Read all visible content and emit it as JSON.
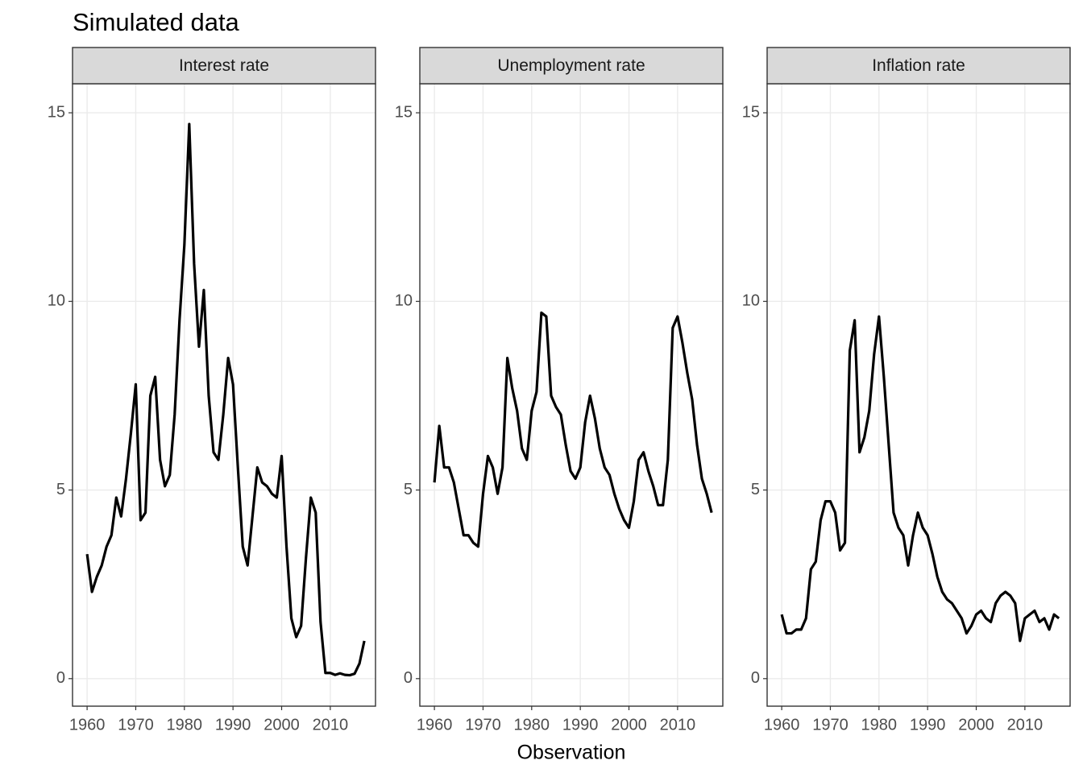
{
  "chart_data": {
    "type": "line",
    "title": "Simulated data",
    "xlabel": "Observation",
    "x": [
      1960,
      1961,
      1962,
      1963,
      1964,
      1965,
      1966,
      1967,
      1968,
      1969,
      1970,
      1971,
      1972,
      1973,
      1974,
      1975,
      1976,
      1977,
      1978,
      1979,
      1980,
      1981,
      1982,
      1983,
      1984,
      1985,
      1986,
      1987,
      1988,
      1989,
      1990,
      1991,
      1992,
      1993,
      1994,
      1995,
      1996,
      1997,
      1998,
      1999,
      2000,
      2001,
      2002,
      2003,
      2004,
      2005,
      2006,
      2007,
      2008,
      2009,
      2010,
      2011,
      2012,
      2013,
      2014,
      2015,
      2016,
      2017
    ],
    "series": [
      {
        "name": "Interest rate",
        "color": "#000000",
        "values": [
          3.3,
          2.3,
          2.7,
          3.0,
          3.5,
          3.8,
          4.8,
          4.3,
          5.3,
          6.5,
          7.8,
          4.2,
          4.4,
          7.5,
          8.0,
          5.8,
          5.1,
          5.4,
          7.0,
          9.5,
          11.5,
          14.7,
          11.0,
          8.8,
          10.3,
          7.5,
          6.0,
          5.8,
          7.0,
          8.5,
          7.8,
          5.6,
          3.5,
          3.0,
          4.3,
          5.6,
          5.2,
          5.1,
          4.9,
          4.8,
          5.9,
          3.5,
          1.6,
          1.1,
          1.4,
          3.2,
          4.8,
          4.4,
          1.5,
          0.15,
          0.15,
          0.1,
          0.14,
          0.1,
          0.09,
          0.13,
          0.4,
          1.0
        ]
      },
      {
        "name": "Unemployment rate",
        "color": "#000000",
        "values": [
          5.2,
          6.7,
          5.6,
          5.6,
          5.2,
          4.5,
          3.8,
          3.8,
          3.6,
          3.5,
          4.9,
          5.9,
          5.6,
          4.9,
          5.6,
          8.5,
          7.7,
          7.1,
          6.1,
          5.8,
          7.1,
          7.6,
          9.7,
          9.6,
          7.5,
          7.2,
          7.0,
          6.2,
          5.5,
          5.3,
          5.6,
          6.8,
          7.5,
          6.9,
          6.1,
          5.6,
          5.4,
          4.9,
          4.5,
          4.2,
          4.0,
          4.7,
          5.8,
          6.0,
          5.5,
          5.1,
          4.6,
          4.6,
          5.8,
          9.3,
          9.6,
          8.9,
          8.1,
          7.4,
          6.2,
          5.3,
          4.9,
          4.4
        ]
      },
      {
        "name": "Inflation rate",
        "color": "#000000",
        "values": [
          1.7,
          1.2,
          1.2,
          1.3,
          1.3,
          1.6,
          2.9,
          3.1,
          4.2,
          4.7,
          4.7,
          4.4,
          3.4,
          3.6,
          8.7,
          9.5,
          6.0,
          6.4,
          7.1,
          8.6,
          9.6,
          8.0,
          6.2,
          4.4,
          4.0,
          3.8,
          3.0,
          3.8,
          4.4,
          4.0,
          3.8,
          3.3,
          2.7,
          2.3,
          2.1,
          2.0,
          1.8,
          1.6,
          1.2,
          1.4,
          1.7,
          1.8,
          1.6,
          1.5,
          2.0,
          2.2,
          2.3,
          2.2,
          2.0,
          1.0,
          1.6,
          1.7,
          1.8,
          1.5,
          1.6,
          1.3,
          1.7,
          1.6
        ]
      }
    ],
    "xlim": [
      1957.0,
      2019.3
    ],
    "xticks": [
      1960,
      1970,
      1980,
      1990,
      2000,
      2010
    ],
    "ylim": [
      -0.73,
      15.77
    ],
    "yticks": [
      0,
      5,
      10,
      15
    ],
    "grid": true,
    "facets": true
  }
}
